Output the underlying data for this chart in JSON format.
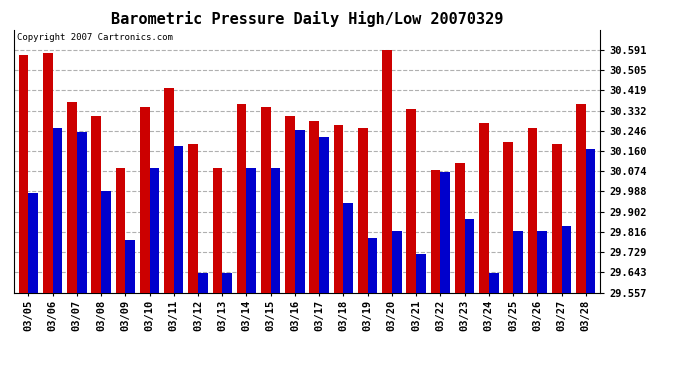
{
  "title": "Barometric Pressure Daily High/Low 20070329",
  "copyright": "Copyright 2007 Cartronics.com",
  "categories": [
    "03/05",
    "03/06",
    "03/07",
    "03/08",
    "03/09",
    "03/10",
    "03/11",
    "03/12",
    "03/13",
    "03/14",
    "03/15",
    "03/16",
    "03/17",
    "03/18",
    "03/19",
    "03/20",
    "03/21",
    "03/22",
    "03/23",
    "03/24",
    "03/25",
    "03/26",
    "03/27",
    "03/28"
  ],
  "highs": [
    30.57,
    30.58,
    30.37,
    30.31,
    30.09,
    30.35,
    30.43,
    30.19,
    30.09,
    30.36,
    30.35,
    30.31,
    30.29,
    30.27,
    30.26,
    30.59,
    30.34,
    30.08,
    30.11,
    30.28,
    30.2,
    30.26,
    30.19,
    30.36
  ],
  "lows": [
    29.98,
    30.26,
    30.24,
    29.99,
    29.78,
    30.09,
    30.18,
    29.64,
    29.64,
    30.09,
    30.09,
    30.25,
    30.22,
    29.94,
    29.79,
    29.82,
    29.72,
    30.07,
    29.87,
    29.64,
    29.82,
    29.82,
    29.84,
    30.17
  ],
  "high_color": "#cc0000",
  "low_color": "#0000cc",
  "ylim_min": 29.557,
  "ylim_max": 30.677,
  "yticks": [
    29.557,
    29.643,
    29.729,
    29.816,
    29.902,
    29.988,
    30.074,
    30.16,
    30.246,
    30.332,
    30.419,
    30.505,
    30.591
  ],
  "background_color": "#ffffff",
  "plot_bg_color": "#ffffff",
  "grid_color": "#b0b0b0",
  "title_fontsize": 11,
  "tick_fontsize": 7.5,
  "copyright_fontsize": 6.5
}
